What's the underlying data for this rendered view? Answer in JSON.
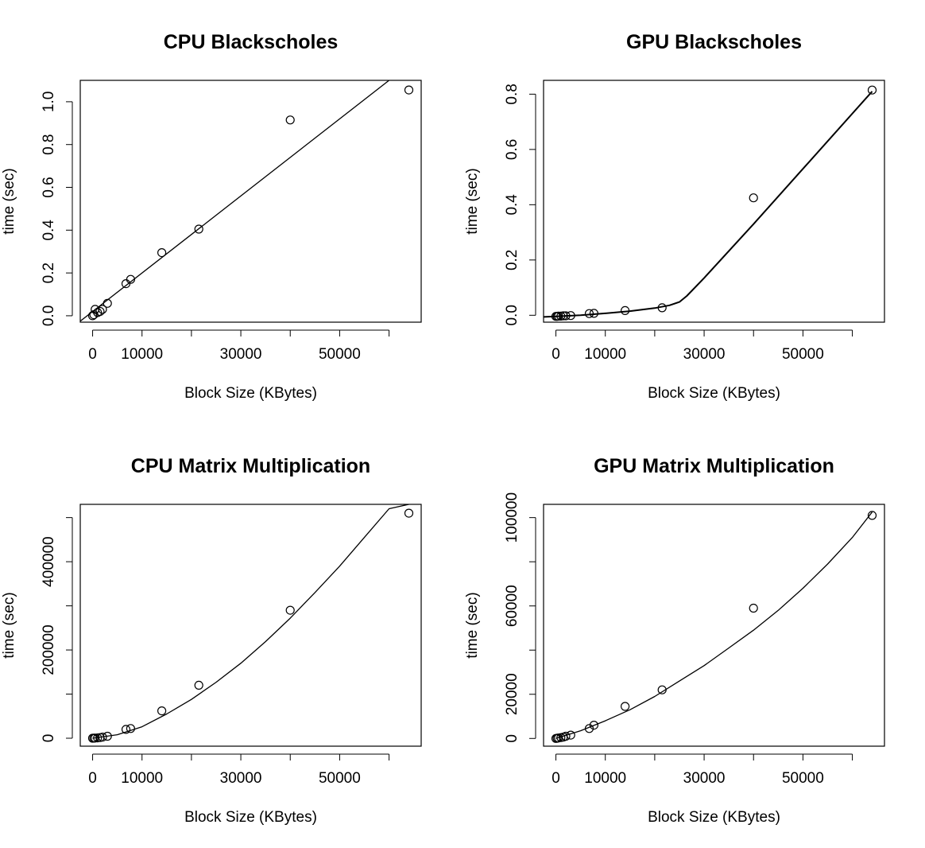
{
  "chart_data": [
    {
      "type": "scatter",
      "title": "CPU Blackscholes",
      "xlabel": "Block Size (KBytes)",
      "ylabel": "time (sec)",
      "xlim": [
        -2500,
        66500
      ],
      "ylim": [
        -0.03,
        1.1
      ],
      "xticks": [
        0,
        10000,
        20000,
        30000,
        40000,
        50000,
        60000
      ],
      "xtick_labels": [
        "0",
        "10000",
        "",
        "30000",
        "",
        "50000",
        ""
      ],
      "yticks": [
        0,
        0.2,
        0.4,
        0.6,
        0.8,
        1.0
      ],
      "ytick_labels": [
        "0.0",
        "0.2",
        "0.4",
        "0.6",
        "0.8",
        "1.0"
      ],
      "grid": false,
      "points": {
        "x": [
          0,
          250,
          500,
          1000,
          1500,
          2000,
          3000,
          6750,
          7700,
          14000,
          21500,
          40000,
          64000
        ],
        "y": [
          0.0,
          0.005,
          0.03,
          0.015,
          0.02,
          0.03,
          0.058,
          0.15,
          0.17,
          0.295,
          0.405,
          0.915,
          1.055
        ]
      },
      "fit": {
        "type": "line",
        "x": [
          -2500,
          60000
        ],
        "y": [
          -0.025,
          1.1
        ]
      }
    },
    {
      "type": "scatter",
      "title": "GPU Blackscholes",
      "xlabel": "Block Size (KBytes)",
      "ylabel": "time (sec)",
      "xlim": [
        -2500,
        66500
      ],
      "ylim": [
        -0.025,
        0.85
      ],
      "xticks": [
        0,
        10000,
        20000,
        30000,
        40000,
        50000,
        60000
      ],
      "xtick_labels": [
        "0",
        "10000",
        "",
        "30000",
        "",
        "50000",
        ""
      ],
      "yticks": [
        0,
        0.2,
        0.4,
        0.6,
        0.8
      ],
      "ytick_labels": [
        "0.0",
        "0.2",
        "0.4",
        "0.6",
        "0.8"
      ],
      "grid": false,
      "points": {
        "x": [
          0,
          250,
          500,
          1000,
          1500,
          2000,
          3000,
          6750,
          7700,
          14000,
          21500,
          40000,
          64000
        ],
        "y": [
          -0.004,
          -0.004,
          -0.003,
          -0.003,
          -0.002,
          -0.002,
          -0.001,
          0.006,
          0.007,
          0.017,
          0.027,
          0.425,
          0.815
        ]
      },
      "fit": {
        "type": "line",
        "x": [
          -2500,
          0,
          5000,
          10000,
          15000,
          20000,
          23000,
          25000,
          26500,
          30000,
          40000,
          50000,
          64000
        ],
        "y": [
          -0.006,
          -0.004,
          0.0,
          0.007,
          0.015,
          0.026,
          0.036,
          0.048,
          0.07,
          0.135,
          0.33,
          0.53,
          0.81
        ]
      }
    },
    {
      "type": "scatter",
      "title": "CPU Matrix Multiplication",
      "xlabel": "Block Size (KBytes)",
      "ylabel": "time (sec)",
      "xlim": [
        -2500,
        66500
      ],
      "ylim": [
        -18000,
        530000
      ],
      "xticks": [
        0,
        10000,
        20000,
        30000,
        40000,
        50000,
        60000
      ],
      "xtick_labels": [
        "0",
        "10000",
        "",
        "30000",
        "",
        "50000",
        ""
      ],
      "yticks": [
        0,
        100000,
        200000,
        300000,
        400000,
        500000
      ],
      "ytick_labels": [
        "0",
        "",
        "200000",
        "",
        "400000",
        ""
      ],
      "grid": false,
      "points": {
        "x": [
          0,
          250,
          500,
          1000,
          1500,
          2000,
          3000,
          6750,
          7700,
          14000,
          21500,
          40000,
          64000
        ],
        "y": [
          0,
          200,
          400,
          800,
          1500,
          2500,
          4500,
          20000,
          22000,
          62000,
          120000,
          290000,
          510000
        ]
      },
      "fit": {
        "type": "curve",
        "x": [
          0,
          5000,
          10000,
          15000,
          20000,
          25000,
          30000,
          35000,
          40000,
          45000,
          50000,
          55000,
          60000,
          64000
        ],
        "y": [
          0,
          8000,
          26000,
          55000,
          88000,
          127000,
          170000,
          219000,
          272000,
          330000,
          390000,
          455000,
          520000,
          530000
        ]
      }
    },
    {
      "type": "scatter",
      "title": "GPU Matrix Multiplication",
      "xlabel": "Block Size (KBytes)",
      "ylabel": "time (sec)",
      "xlim": [
        -2500,
        66500
      ],
      "ylim": [
        -3500,
        106000
      ],
      "xticks": [
        0,
        10000,
        20000,
        30000,
        40000,
        50000,
        60000
      ],
      "xtick_labels": [
        "0",
        "10000",
        "",
        "30000",
        "",
        "50000",
        ""
      ],
      "yticks": [
        0,
        20000,
        40000,
        60000,
        80000,
        100000
      ],
      "ytick_labels": [
        "0",
        "20000",
        "",
        "60000",
        "",
        "100000"
      ],
      "grid": false,
      "points": {
        "x": [
          0,
          250,
          500,
          1000,
          1500,
          2000,
          3000,
          6750,
          7700,
          14000,
          21500,
          40000,
          64000
        ],
        "y": [
          0,
          100,
          200,
          400,
          600,
          1000,
          1500,
          4500,
          6000,
          14500,
          22000,
          59000,
          101000
        ]
      },
      "fit": {
        "type": "curve",
        "x": [
          0,
          5000,
          10000,
          15000,
          20000,
          25000,
          30000,
          35000,
          40000,
          45000,
          50000,
          55000,
          60000,
          64000
        ],
        "y": [
          0,
          3500,
          8000,
          13000,
          19000,
          26000,
          33000,
          41000,
          49000,
          58000,
          68000,
          79000,
          91000,
          102500
        ]
      }
    }
  ]
}
